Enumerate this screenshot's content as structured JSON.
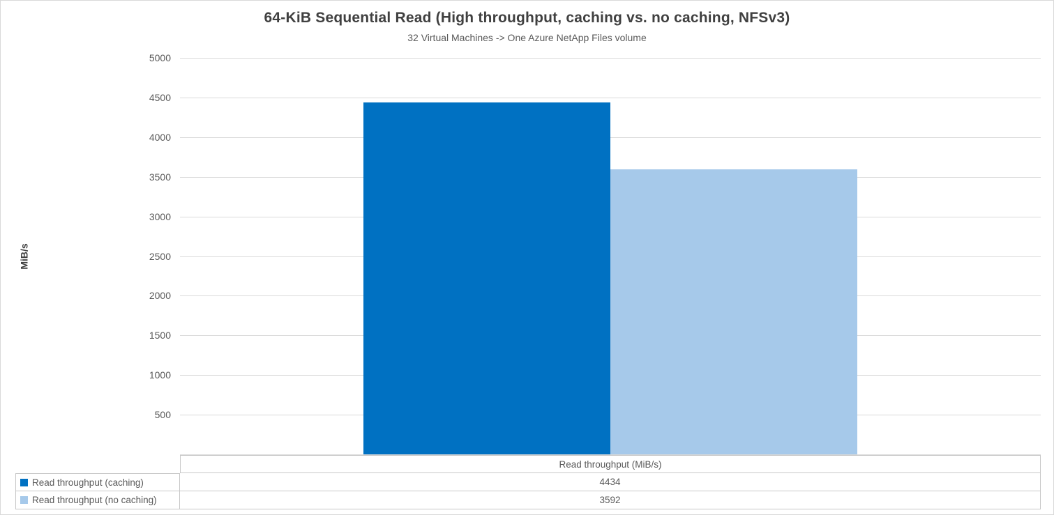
{
  "chart_data": {
    "type": "bar",
    "title": "64-KiB Sequential Read (High throughput, caching vs. no caching, NFSv3)",
    "subtitle": "32 Virtual Machines -> One Azure NetApp Files volume",
    "ylabel": "MiB/s",
    "categories": [
      "Read throughput (MiB/s)"
    ],
    "series": [
      {
        "name": "Read throughput (caching)",
        "values": [
          4434
        ],
        "color": "#0071c2"
      },
      {
        "name": "Read throughput (no caching)",
        "values": [
          3592
        ],
        "color": "#a6c9ea"
      }
    ],
    "ylim": [
      0,
      5000
    ],
    "yticks": [
      500,
      1000,
      1500,
      2000,
      2500,
      3000,
      3500,
      4000,
      4500,
      5000
    ],
    "grid": true,
    "legend_position": "bottom-data-table"
  },
  "colors": {
    "gridline": "#d9d9d9",
    "table_border": "#c8c8c8",
    "title_text": "#404040",
    "axis_text": "#595959"
  }
}
